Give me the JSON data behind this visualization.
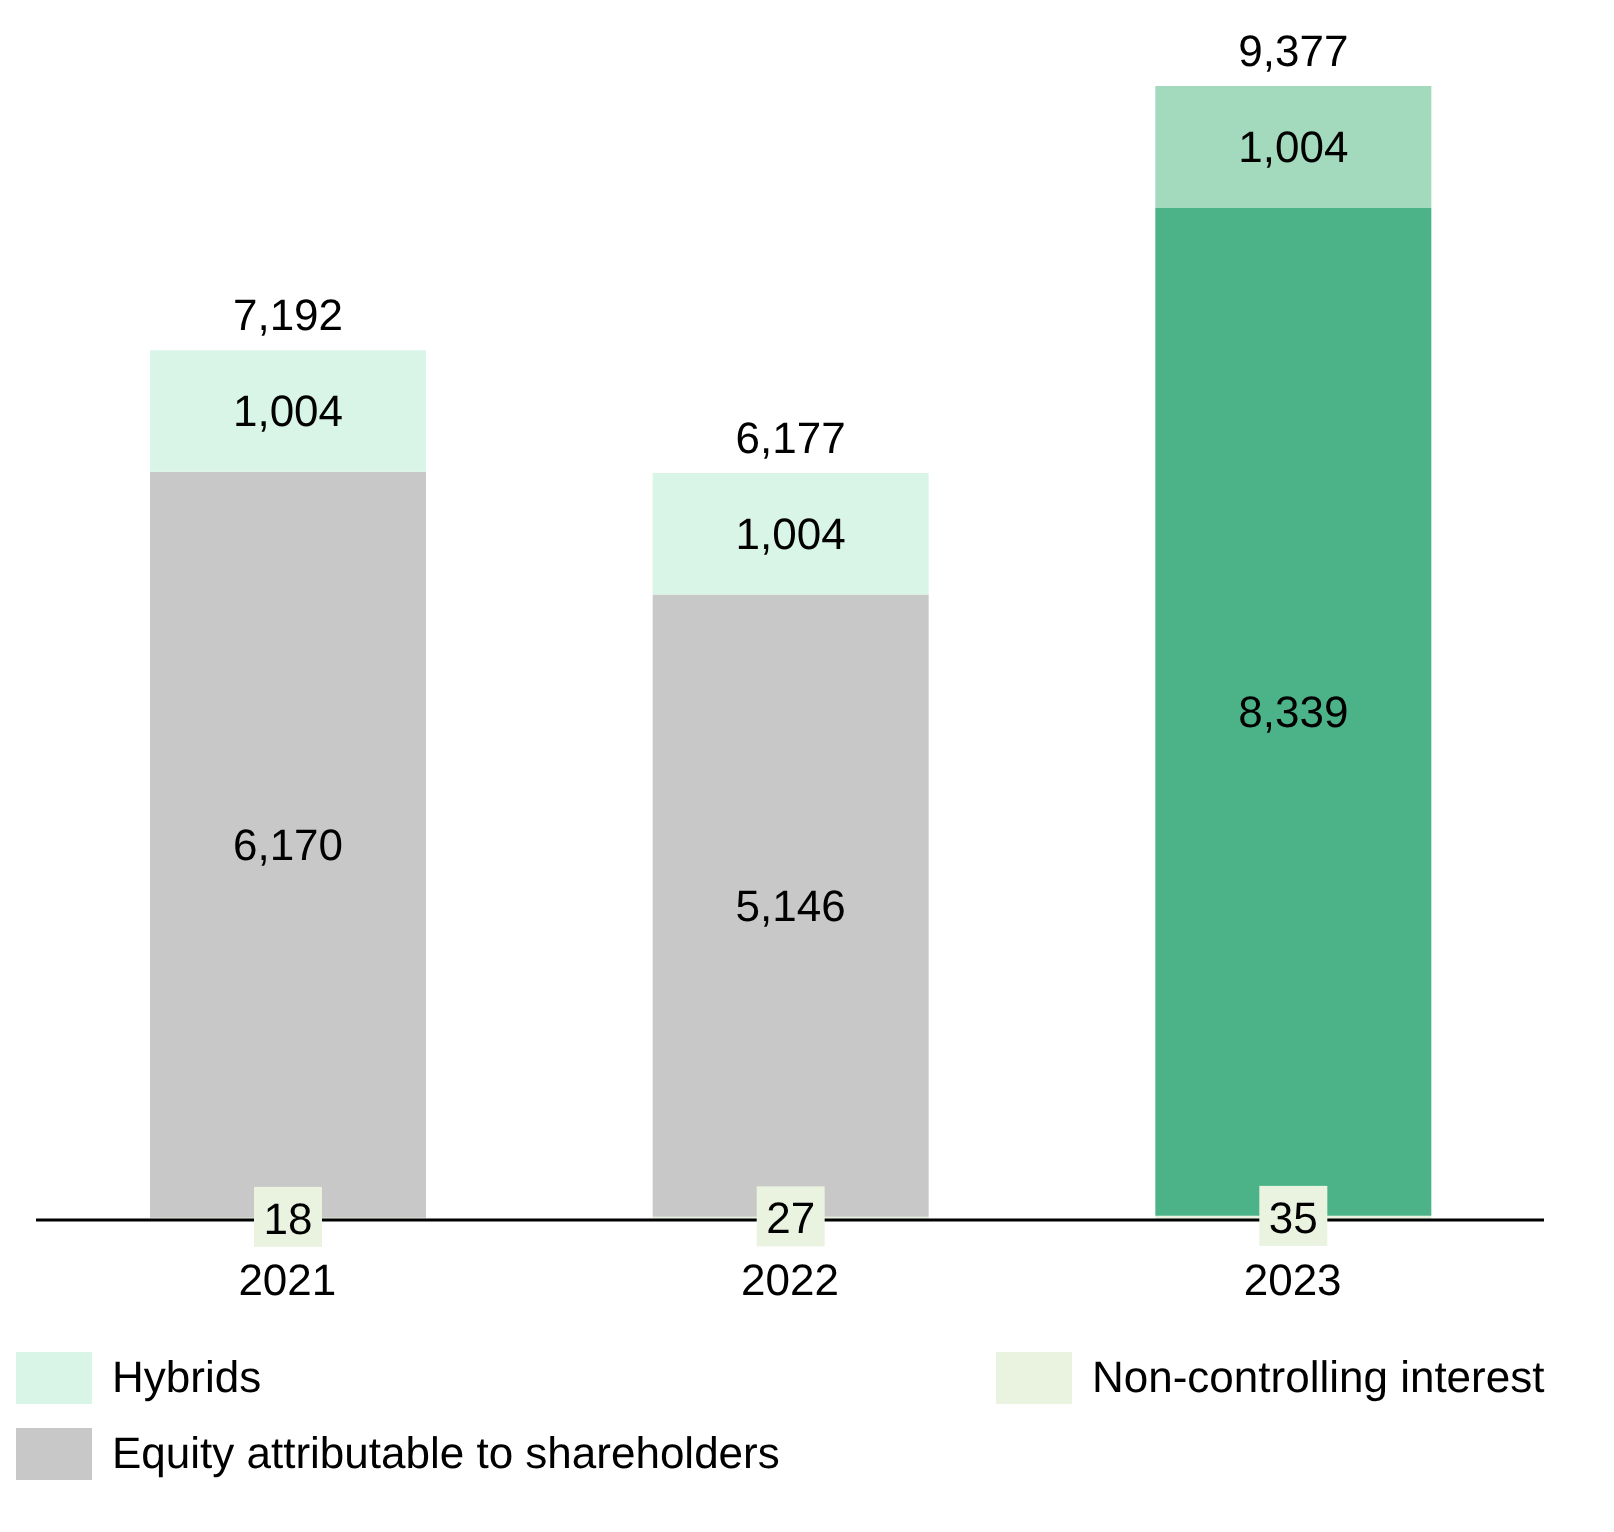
{
  "chart_data": {
    "type": "bar",
    "stacked": true,
    "categories": [
      "2021",
      "2022",
      "2023"
    ],
    "series": [
      {
        "name": "Non-controlling interest",
        "color": "#e9f3df",
        "values": [
          18,
          27,
          35
        ],
        "value_labels": [
          "18",
          "27",
          "35"
        ]
      },
      {
        "name": "Equity attributable to shareholders",
        "color": "#c8c8c8",
        "colors": [
          "#c8c8c8",
          "#c8c8c8",
          "#4cb388"
        ],
        "values": [
          6170,
          5146,
          8339
        ],
        "value_labels": [
          "6,170",
          "5,146",
          "8,339"
        ]
      },
      {
        "name": "Hybrids",
        "color": "#d9f5e7",
        "colors": [
          "#d9f5e7",
          "#d9f5e7",
          "#a3d9bd"
        ],
        "values": [
          1004,
          1004,
          1004
        ],
        "value_labels": [
          "1,004",
          "1,004",
          "1,004"
        ]
      }
    ],
    "totals": [
      "7,192",
      "6,177",
      "9,377"
    ],
    "legend": "bottom"
  }
}
